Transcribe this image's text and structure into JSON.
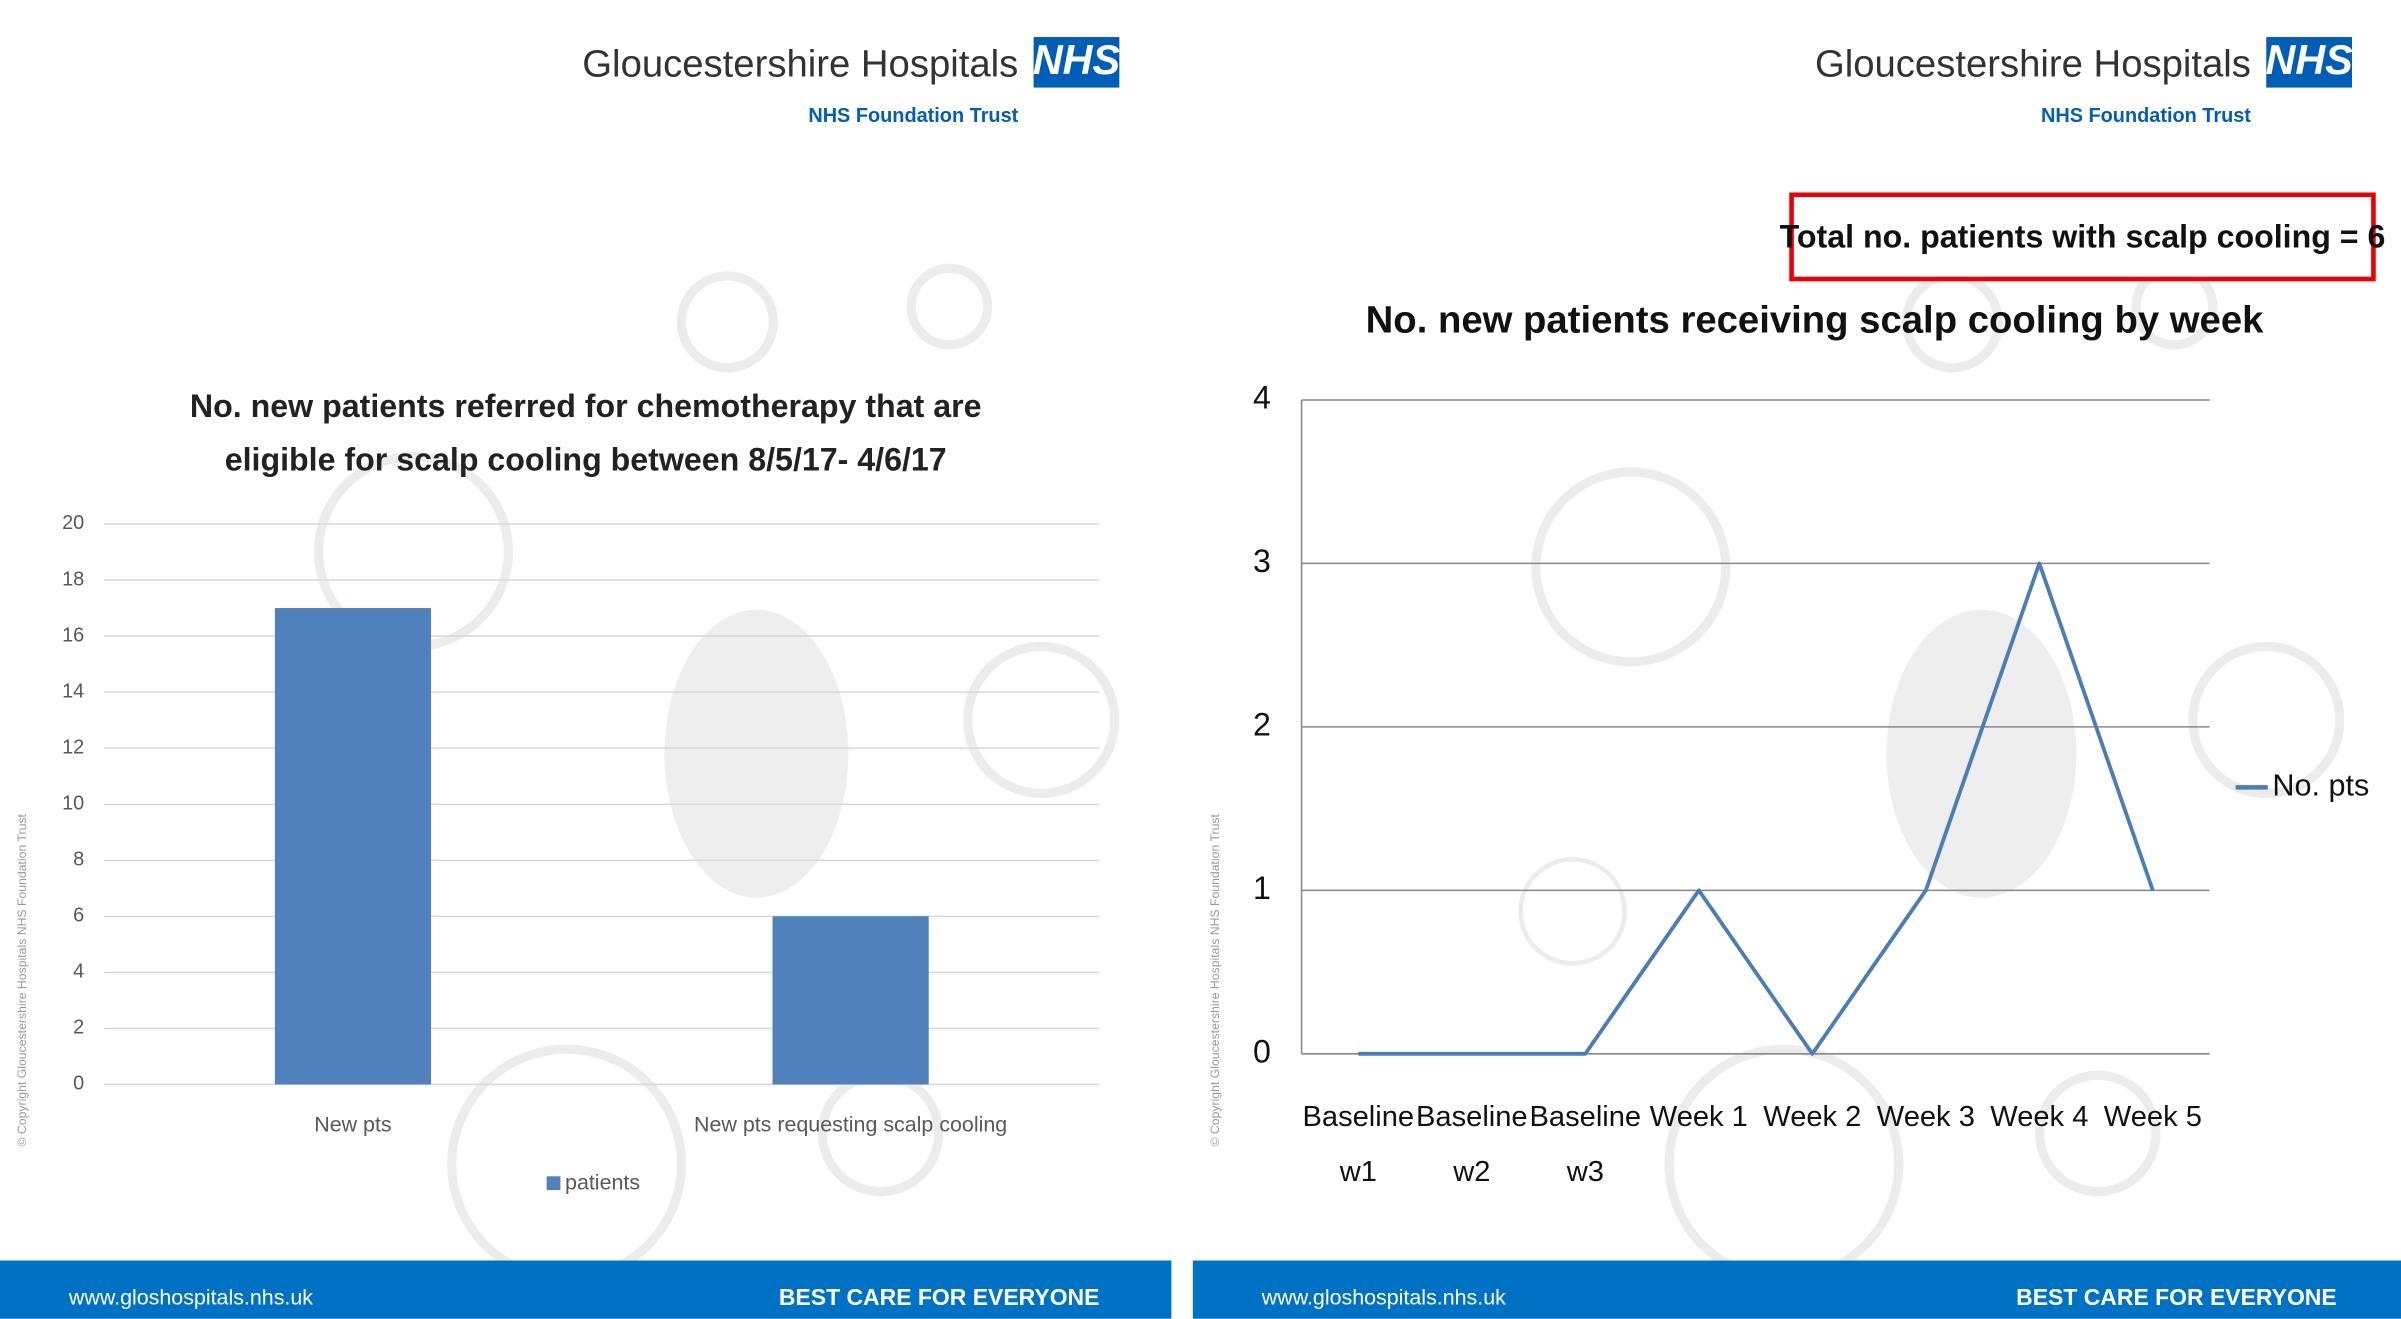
{
  "chart_data": [
    {
      "type": "bar",
      "title": "No. new patients referred for chemotherapy that are eligible for scalp cooling between 8/5/17- 4/6/17",
      "categories": [
        "New pts",
        "New pts requesting scalp cooling"
      ],
      "series": [
        {
          "name": "patients",
          "color": "#4f81bd",
          "values": [
            17,
            6
          ]
        }
      ],
      "ylim": [
        0,
        20
      ],
      "yticks": [
        0,
        2,
        4,
        6,
        8,
        10,
        12,
        14,
        16,
        18,
        20
      ],
      "grid": true,
      "legend": "bottom"
    },
    {
      "type": "line",
      "title": "No. new patients receiving scalp cooling by week",
      "annotation": "Total no. patients with scalp cooling = 6",
      "categories": [
        "Baseline w1",
        "Baseline w2",
        "Baseline w3",
        "Week 1",
        "Week 2",
        "Week 3",
        "Week 4",
        "Week 5"
      ],
      "series": [
        {
          "name": "No. pts",
          "color": "#4a7ebb",
          "values": [
            0,
            0,
            0,
            1,
            0,
            1,
            3,
            1
          ]
        }
      ],
      "ylim": [
        0,
        4
      ],
      "yticks": [
        0,
        1,
        2,
        3,
        4
      ],
      "grid": true,
      "legend": "right"
    }
  ],
  "slides": [
    {
      "logo": "Gloucestershire Hospitals",
      "nhs": "NHS",
      "trust": "NHS Foundation Trust",
      "copyright": "© Copyright Gloucestershire Hospitals NHS Foundation Trust",
      "website": "www.gloshospitals.nhs.uk",
      "slogan": "BEST CARE FOR EVERYONE"
    },
    {
      "logo": "Gloucestershire Hospitals",
      "nhs": "NHS",
      "trust": "NHS Foundation Trust",
      "copyright": "© Copyright Gloucestershire Hospitals NHS Foundation Trust",
      "website": "www.gloshospitals.nhs.uk",
      "slogan": "BEST CARE FOR EVERYONE"
    }
  ]
}
